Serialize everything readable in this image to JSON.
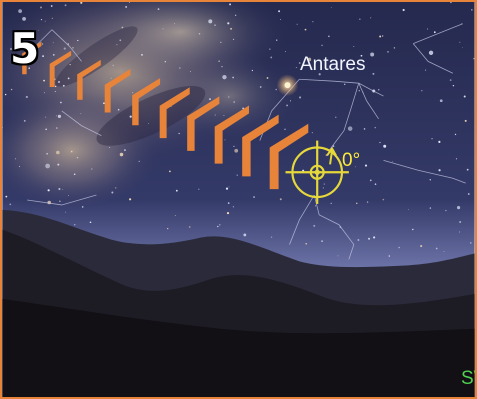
{
  "step": {
    "number": "5"
  },
  "sky": {
    "star_label": "Antares",
    "angle_readout": "0°",
    "compass_direction": "SW"
  },
  "colors": {
    "frame": "#e8843a",
    "chevrons": "#e8843a",
    "reticle": "#e6d83a",
    "compass": "#4fd24f",
    "sky_top": "#2b2f55",
    "horizon_glow": "#7b82b8",
    "ground": "#121014"
  },
  "icons": {
    "reticle": "telrad-finder-reticle-icon",
    "chevron": "direction-chevron-icon",
    "arrow": "rotation-arrow-icon"
  }
}
